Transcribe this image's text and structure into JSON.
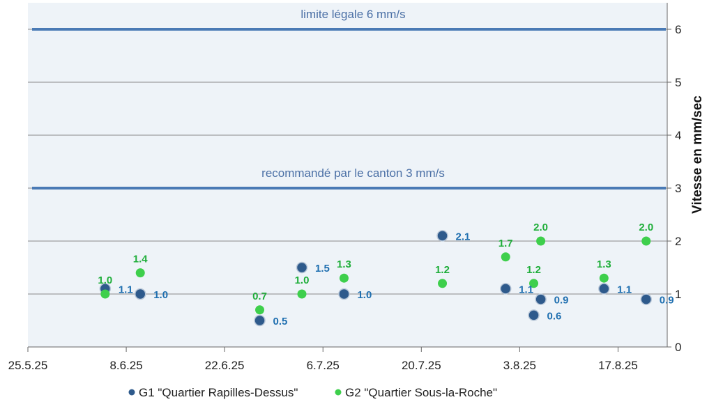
{
  "chart_data": {
    "type": "scatter",
    "x_tick_labels": [
      "25.5.25",
      "8.6.25",
      "22.6.25",
      "6.7.25",
      "20.7.25",
      "3.8.25",
      "17.8.25"
    ],
    "x_ticks": [
      "2025-05-25",
      "2025-06-08",
      "2025-06-22",
      "2025-07-06",
      "2025-07-20",
      "2025-08-03",
      "2025-08-17"
    ],
    "xlim": [
      "2025-05-25",
      "2025-08-24"
    ],
    "ylim": [
      0,
      6.5
    ],
    "y_ticks": [
      0,
      1,
      2,
      3,
      4,
      5,
      6
    ],
    "y_tick_labels": [
      "0",
      "1",
      "2",
      "3",
      "4",
      "5",
      "6"
    ],
    "ylabel": "Vitesse en mm/sec",
    "y_axis_side": "right",
    "grid": "horizontal",
    "legend_position": "bottom",
    "colors": {
      "plot_background": "#eef3f8",
      "reference_line": "#4a7ab5",
      "G1": "#2e5a8c",
      "G2": "#3ecf4c",
      "G1_label": "#1f6fb0",
      "G2_label": "#1fae3a"
    },
    "reference_lines": [
      {
        "value": 6,
        "label": "limite légale 6 mm/s"
      },
      {
        "value": 3,
        "label": "recommandé par le canton 3 mm/s"
      }
    ],
    "series": [
      {
        "name": "G1 \"Quartier Rapilles-Dessus\"",
        "points": [
          {
            "x": "2025-06-05",
            "y": 1.1,
            "label": "1.1"
          },
          {
            "x": "2025-06-10",
            "y": 1.0,
            "label": "1.0"
          },
          {
            "x": "2025-06-27",
            "y": 0.5,
            "label": "0.5"
          },
          {
            "x": "2025-07-03",
            "y": 1.5,
            "label": "1.5"
          },
          {
            "x": "2025-07-09",
            "y": 1.0,
            "label": "1.0"
          },
          {
            "x": "2025-07-23",
            "y": 2.1,
            "label": "2.1"
          },
          {
            "x": "2025-08-01",
            "y": 1.1,
            "label": "1.1"
          },
          {
            "x": "2025-08-05",
            "y": 0.6,
            "label": "0.6"
          },
          {
            "x": "2025-08-06",
            "y": 0.9,
            "label": "0.9"
          },
          {
            "x": "2025-08-15",
            "y": 1.1,
            "label": "1.1"
          },
          {
            "x": "2025-08-21",
            "y": 0.9,
            "label": "0.9"
          }
        ]
      },
      {
        "name": "G2 \"Quartier Sous-la-Roche\"",
        "points": [
          {
            "x": "2025-06-05",
            "y": 1.0,
            "label": "1.0"
          },
          {
            "x": "2025-06-10",
            "y": 1.4,
            "label": "1.4"
          },
          {
            "x": "2025-06-27",
            "y": 0.7,
            "label": "0.7"
          },
          {
            "x": "2025-07-03",
            "y": 1.0,
            "label": "1.0"
          },
          {
            "x": "2025-07-09",
            "y": 1.3,
            "label": "1.3"
          },
          {
            "x": "2025-07-23",
            "y": 1.2,
            "label": "1.2"
          },
          {
            "x": "2025-08-01",
            "y": 1.7,
            "label": "1.7"
          },
          {
            "x": "2025-08-05",
            "y": 1.2,
            "label": "1.2"
          },
          {
            "x": "2025-08-06",
            "y": 2.0,
            "label": "2.0"
          },
          {
            "x": "2025-08-15",
            "y": 1.3,
            "label": "1.3"
          },
          {
            "x": "2025-08-21",
            "y": 2.0,
            "label": "2.0"
          }
        ]
      }
    ]
  }
}
